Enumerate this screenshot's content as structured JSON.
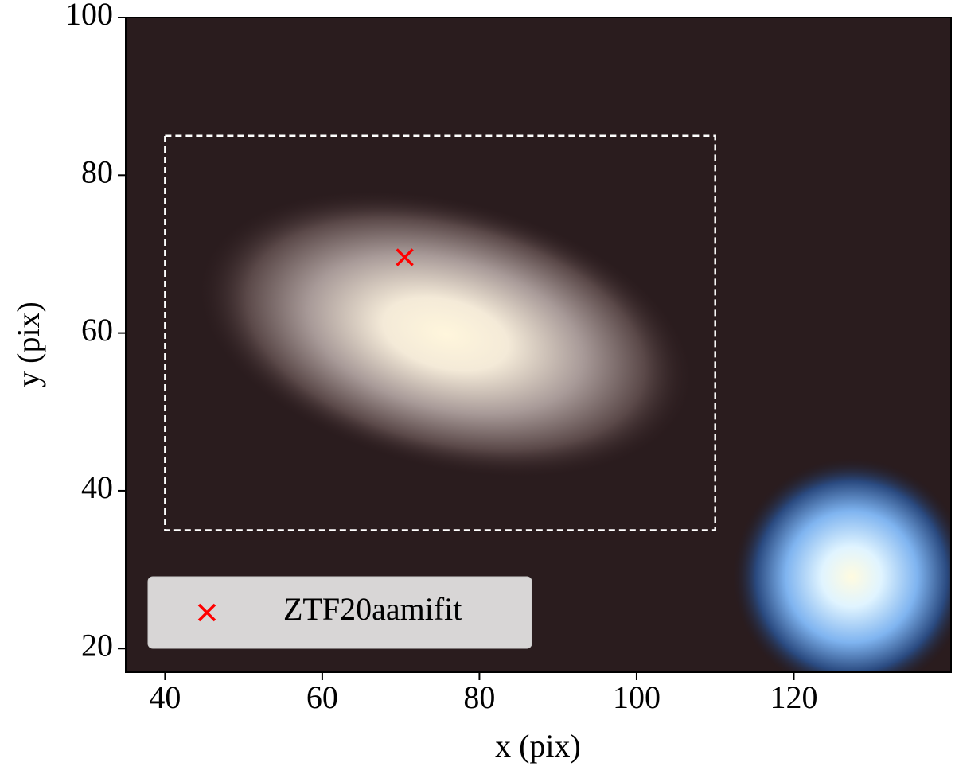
{
  "chart_data": {
    "type": "scatter",
    "xlabel": "x (pix)",
    "ylabel": "y (pix)",
    "xlim": [
      35,
      140
    ],
    "ylim": [
      17,
      100
    ],
    "xticks": [
      40,
      60,
      80,
      100,
      120
    ],
    "yticks": [
      20,
      40,
      60,
      80,
      100
    ],
    "series": [
      {
        "name": "ZTF20aamifit",
        "color": "#ff0000",
        "x": [
          70.5
        ],
        "values": [
          69.6
        ]
      }
    ],
    "box": {
      "x": [
        40,
        110
      ],
      "y": [
        35,
        85
      ],
      "color": "#ffffff"
    },
    "legend": "lower left"
  }
}
